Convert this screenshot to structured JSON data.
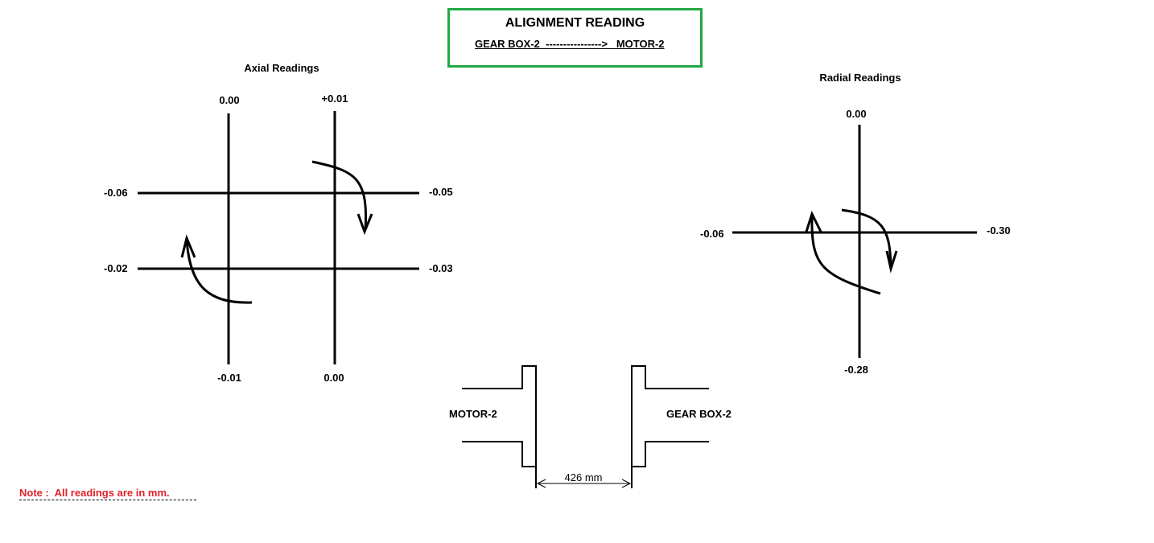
{
  "header": {
    "title": "ALIGNMENT READING",
    "subtitle": "GEAR BOX-2  ---------------->   MOTOR-2"
  },
  "axial": {
    "heading": "Axial Readings",
    "top_left": "0.00",
    "top_right": "+0.01",
    "left_top": "-0.06",
    "left_bottom": "-0.02",
    "right_top": "-0.05",
    "right_bottom": "-0.03",
    "bottom_left": "-0.01",
    "bottom_right": "0.00"
  },
  "radial": {
    "heading": "Radial Readings",
    "top": "0.00",
    "left": "-0.06",
    "right": "-0.30",
    "bottom": "-0.28"
  },
  "coupling": {
    "left_label": "MOTOR-2",
    "right_label": "GEAR BOX-2",
    "gap": "426 mm"
  },
  "note": "Note :  All readings are in mm.",
  "colors": {
    "box_border": "#22a845",
    "note_text": "#e0202a"
  }
}
